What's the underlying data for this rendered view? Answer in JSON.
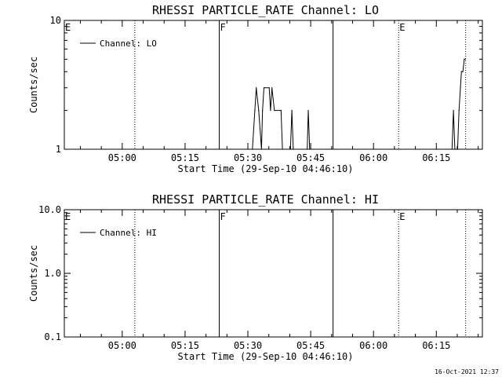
{
  "chart_data": [
    {
      "type": "line",
      "title": "RHESSI PARTICLE_RATE Channel: LO",
      "xlabel": "Start Time (29-Sep-10 04:46:10)",
      "ylabel": "Counts/sec",
      "yscale": "log",
      "ylim": [
        1,
        10
      ],
      "xlim": [
        "04:46:10",
        "06:26:00"
      ],
      "grid": false,
      "legend_position": "top-left",
      "x_tick_labels": [
        "05:00",
        "05:15",
        "05:30",
        "05:45",
        "06:00",
        "06:15"
      ],
      "y_tick_labels": [
        "1",
        "10"
      ],
      "markers": [
        {
          "label": "E",
          "time": "04:46:10",
          "style": "dotted"
        },
        {
          "label": "",
          "time": "05:03:00",
          "style": "dotted"
        },
        {
          "label": "F",
          "time": "05:23:10",
          "style": "solid"
        },
        {
          "label": "",
          "time": "05:50:20",
          "style": "solid"
        },
        {
          "label": "E",
          "time": "06:06:00",
          "style": "dotted"
        },
        {
          "label": "",
          "time": "06:22:00",
          "style": "dotted"
        }
      ],
      "series": [
        {
          "name": "Channel: LO",
          "points": [
            [
              "05:31:05",
              1
            ],
            [
              "05:31:40",
              2
            ],
            [
              "05:32:00",
              3
            ],
            [
              "05:32:35",
              2
            ],
            [
              "05:33:15",
              1
            ],
            [
              "05:33:30",
              2
            ],
            [
              "05:33:50",
              3
            ],
            [
              "05:35:05",
              3
            ],
            [
              "05:35:25",
              2
            ],
            [
              "05:35:45",
              3
            ],
            [
              "05:36:20",
              2
            ],
            [
              "05:37:55",
              2
            ],
            [
              "05:38:15",
              1
            ],
            [
              "05:40:10",
              1
            ],
            [
              "05:40:30",
              2
            ],
            [
              "05:40:50",
              1
            ],
            [
              "05:44:10",
              1
            ],
            [
              "05:44:25",
              2
            ],
            [
              "05:44:45",
              1
            ],
            [
              "06:18:45",
              1
            ],
            [
              "06:19:05",
              2
            ],
            [
              "06:19:25",
              1
            ],
            [
              "06:20:05",
              1
            ],
            [
              "06:20:25",
              2
            ],
            [
              "06:20:45",
              3
            ],
            [
              "06:21:00",
              4
            ],
            [
              "06:21:20",
              4
            ],
            [
              "06:21:40",
              5
            ],
            [
              "06:21:55",
              5
            ]
          ]
        }
      ]
    },
    {
      "type": "line",
      "title": "RHESSI PARTICLE_RATE Channel: HI",
      "xlabel": "Start Time (29-Sep-10 04:46:10)",
      "ylabel": "Counts/sec",
      "yscale": "log",
      "ylim": [
        0.1,
        10.0
      ],
      "xlim": [
        "04:46:10",
        "06:26:00"
      ],
      "grid": false,
      "legend_position": "top-left",
      "x_tick_labels": [
        "05:00",
        "05:15",
        "05:30",
        "05:45",
        "06:00",
        "06:15"
      ],
      "y_tick_labels": [
        "0.1",
        "1.0",
        "10.0"
      ],
      "markers": [
        {
          "label": "E",
          "time": "04:46:10",
          "style": "dotted"
        },
        {
          "label": "",
          "time": "05:03:00",
          "style": "dotted"
        },
        {
          "label": "F",
          "time": "05:23:10",
          "style": "solid"
        },
        {
          "label": "",
          "time": "05:50:20",
          "style": "solid"
        },
        {
          "label": "E",
          "time": "06:06:00",
          "style": "dotted"
        },
        {
          "label": "",
          "time": "06:22:00",
          "style": "dotted"
        }
      ],
      "series": [
        {
          "name": "Channel: HI",
          "points": []
        }
      ]
    }
  ],
  "footer": {
    "timestamp": "16-Oct-2021 12:37"
  },
  "colors": {
    "background": "#ffffff",
    "ink": "#000000"
  }
}
